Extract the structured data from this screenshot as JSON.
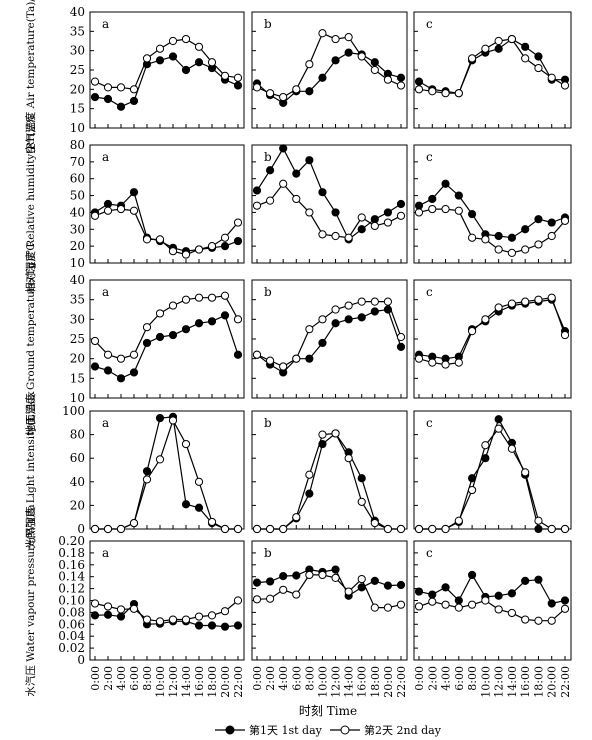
{
  "x_ticks": [
    "0:00",
    "2:00",
    "4:00",
    "6:00",
    "8:00",
    "10:00",
    "12:00",
    "14:00",
    "16:00",
    "18:00",
    "20:00",
    "22:00"
  ],
  "x_label": "时刻 Time",
  "legend": [
    {
      "name": "第1天 1st day",
      "marker": "filled"
    },
    {
      "name": "第2天 2nd day",
      "marker": "open"
    }
  ],
  "colors": {
    "line": "#000000",
    "filled_marker": "#000000",
    "open_marker": "#ffffff"
  },
  "chart_data": [
    {
      "type": "line",
      "ylabel": "空气温度 Air temperature(Ta)/℃",
      "ylim": [
        10,
        40
      ],
      "yticks": [
        10,
        15,
        20,
        25,
        30,
        35,
        40
      ],
      "panels": [
        {
          "label": "a",
          "series": [
            {
              "name": "第1天 1st day",
              "values": [
                18,
                17.5,
                15.5,
                17,
                26.5,
                27.5,
                28.5,
                25,
                27,
                25.5,
                22.5,
                21
              ]
            },
            {
              "name": "第2天 2nd day",
              "values": [
                22,
                20.5,
                20.5,
                20,
                28,
                30.5,
                32.5,
                33,
                31,
                27,
                23.5,
                23
              ]
            }
          ]
        },
        {
          "label": "b",
          "series": [
            {
              "name": "第1天 1st day",
              "values": [
                21.5,
                18.5,
                16.5,
                19.5,
                19.5,
                23,
                27.5,
                29.5,
                29,
                27,
                24,
                23
              ]
            },
            {
              "name": "第2天 2nd day",
              "values": [
                20.5,
                19,
                18,
                20,
                26.5,
                34.5,
                33,
                33.5,
                28.5,
                25,
                22.5,
                21
              ]
            }
          ]
        },
        {
          "label": "c",
          "series": [
            {
              "name": "第1天 1st day",
              "values": [
                22,
                20,
                19.5,
                19,
                27.5,
                29.5,
                30.5,
                33,
                31,
                28.5,
                22.5,
                22.5
              ]
            },
            {
              "name": "第2天 2nd day",
              "values": [
                20,
                19.5,
                19,
                19,
                28,
                30.5,
                32.5,
                33,
                28,
                25.5,
                23,
                21
              ]
            }
          ]
        }
      ]
    },
    {
      "type": "line",
      "ylabel": "相对湿度 Relative humidity(RH)/%",
      "ylim": [
        10,
        80
      ],
      "yticks": [
        10,
        20,
        30,
        40,
        50,
        60,
        70,
        80
      ],
      "panels": [
        {
          "label": "a",
          "series": [
            {
              "name": "第1天 1st day",
              "values": [
                40,
                45,
                44,
                52,
                25,
                23,
                19,
                17,
                18,
                19,
                20,
                23
              ]
            },
            {
              "name": "第2天 2nd day",
              "values": [
                38,
                41,
                42,
                41,
                24,
                24,
                17,
                15,
                18,
                20,
                25,
                34
              ]
            }
          ]
        },
        {
          "label": "b",
          "series": [
            {
              "name": "第1天 1st day",
              "values": [
                53,
                65,
                78,
                63,
                71,
                52,
                40,
                24,
                30,
                36,
                40,
                45
              ]
            },
            {
              "name": "第2天 2nd day",
              "values": [
                44,
                47,
                57,
                48,
                40,
                27,
                26,
                25,
                37,
                32,
                34,
                38
              ]
            }
          ]
        },
        {
          "label": "c",
          "series": [
            {
              "name": "第1天 1st day",
              "values": [
                44,
                48,
                57,
                50,
                39,
                27,
                26,
                25,
                30,
                36,
                34,
                37
              ]
            },
            {
              "name": "第2天 2nd day",
              "values": [
                40,
                42,
                42,
                41,
                25,
                24,
                18,
                16,
                18,
                21,
                26,
                35
              ]
            }
          ]
        }
      ]
    },
    {
      "type": "line",
      "ylabel": "地面温度 Ground temperature(Tg)/℃",
      "ylim": [
        10,
        40
      ],
      "yticks": [
        10,
        15,
        20,
        25,
        30,
        35,
        40
      ],
      "panels": [
        {
          "label": "a",
          "series": [
            {
              "name": "第1天 1st day",
              "values": [
                18,
                17,
                15,
                16.5,
                24,
                25.5,
                26,
                27.5,
                29,
                29.5,
                31,
                21
              ]
            },
            {
              "name": "第2天 2nd day",
              "values": [
                24.5,
                21,
                20,
                21,
                28,
                31.5,
                33.5,
                35,
                35.5,
                35.5,
                36,
                30
              ]
            }
          ]
        },
        {
          "label": "b",
          "series": [
            {
              "name": "第1天 1st day",
              "values": [
                21,
                18.5,
                16.5,
                20,
                20,
                24,
                29,
                30,
                30.5,
                32,
                32.5,
                23
              ]
            },
            {
              "name": "第2天 2nd day",
              "values": [
                21,
                19.5,
                18,
                20,
                27.5,
                30,
                32.5,
                33.5,
                34.5,
                34.5,
                34.5,
                25.5
              ]
            }
          ]
        },
        {
          "label": "c",
          "series": [
            {
              "name": "第1天 1st day",
              "values": [
                21,
                20.5,
                20,
                20.5,
                27.5,
                29.5,
                32,
                33.5,
                34,
                34.5,
                35,
                27
              ]
            },
            {
              "name": "第2天 2nd day",
              "values": [
                20,
                19,
                18.5,
                19,
                27,
                30,
                33,
                34,
                34.5,
                35,
                35.5,
                26
              ]
            }
          ]
        }
      ]
    },
    {
      "type": "line",
      "ylabel": "光照强度 Light intensity(L)/klx",
      "ylim": [
        0,
        100
      ],
      "yticks": [
        0,
        20,
        40,
        60,
        80,
        100
      ],
      "panels": [
        {
          "label": "a",
          "series": [
            {
              "name": "第1天 1st day",
              "values": [
                0,
                0,
                0,
                5,
                49,
                94,
                95,
                21,
                18,
                5,
                0,
                0
              ]
            },
            {
              "name": "第2天 2nd day",
              "values": [
                0,
                0,
                0,
                5,
                42,
                59,
                92,
                72,
                40,
                6,
                0,
                0
              ]
            }
          ]
        },
        {
          "label": "b",
          "series": [
            {
              "name": "第1天 1st day",
              "values": [
                0,
                0,
                0,
                9,
                30,
                72,
                81,
                65,
                43,
                7,
                0,
                0
              ]
            },
            {
              "name": "第2天 2nd day",
              "values": [
                0,
                0,
                0,
                10,
                46,
                80,
                81,
                60,
                23,
                5,
                0,
                0
              ]
            }
          ]
        },
        {
          "label": "c",
          "series": [
            {
              "name": "第1天 1st day",
              "values": [
                0,
                0,
                0,
                6,
                43,
                60,
                93,
                73,
                46,
                0,
                0,
                0
              ]
            },
            {
              "name": "第2天 2nd day",
              "values": [
                0,
                0,
                0,
                7,
                33,
                71,
                85,
                68,
                48,
                7,
                0,
                0
              ]
            }
          ]
        }
      ]
    },
    {
      "type": "line",
      "ylabel": "水汽压 Water vapour pressure(W)/Pa",
      "ylim": [
        0,
        0.2
      ],
      "yticks": [
        0,
        0.02,
        0.04,
        0.06,
        0.08,
        0.1,
        0.12,
        0.14,
        0.16,
        0.18,
        0.2
      ],
      "ytick_labels": [
        "0",
        "0.02",
        "0.04",
        "0.06",
        "0.08",
        "0.10",
        "0.12",
        "0.14",
        "0.16",
        "0.18",
        "0.20"
      ],
      "panels": [
        {
          "label": "a",
          "series": [
            {
              "name": "第1天 1st day",
              "values": [
                0.075,
                0.076,
                0.073,
                0.094,
                0.06,
                0.061,
                0.065,
                0.065,
                0.058,
                0.058,
                0.056,
                0.058
              ]
            },
            {
              "name": "第2天 2nd day",
              "values": [
                0.095,
                0.09,
                0.085,
                0.086,
                0.068,
                0.065,
                0.068,
                0.068,
                0.073,
                0.075,
                0.082,
                0.1
              ]
            }
          ]
        },
        {
          "label": "b",
          "series": [
            {
              "name": "第1天 1st day",
              "values": [
                0.13,
                0.132,
                0.141,
                0.142,
                0.152,
                0.148,
                0.152,
                0.108,
                0.122,
                0.133,
                0.125,
                0.126
              ]
            },
            {
              "name": "第2天 2nd day",
              "values": [
                0.102,
                0.103,
                0.118,
                0.11,
                0.143,
                0.143,
                0.138,
                0.115,
                0.136,
                0.088,
                0.088,
                0.093
              ]
            }
          ]
        },
        {
          "label": "c",
          "series": [
            {
              "name": "第1天 1st day",
              "values": [
                0.115,
                0.11,
                0.122,
                0.1,
                0.143,
                0.106,
                0.108,
                0.112,
                0.133,
                0.135,
                0.095,
                0.1
              ]
            },
            {
              "name": "第2天 2nd day",
              "values": [
                0.09,
                0.098,
                0.093,
                0.088,
                0.093,
                0.1,
                0.085,
                0.079,
                0.068,
                0.066,
                0.066,
                0.086
              ]
            }
          ]
        }
      ]
    }
  ]
}
